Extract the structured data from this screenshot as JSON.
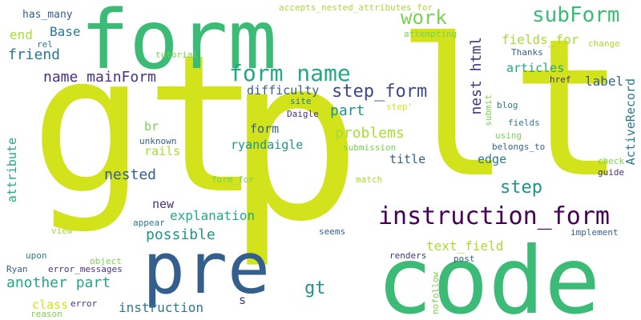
{
  "colors": {
    "background": "#ffffff",
    "yellow": "#d2e21b",
    "lime": "#a8db34",
    "light_green": "#7ad151",
    "green": "#3bbb75",
    "emerald": "#22a884",
    "teal": "#1f948c",
    "cyan_blue": "#2a788e",
    "slate_blue": "#345f8d",
    "indigo": "#3e4989",
    "purple": "#46327e",
    "dark_purple": "#440154"
  },
  "words": [
    {
      "text": "gt"
    },
    {
      "text": "p"
    },
    {
      "text": "lt"
    },
    {
      "text": "form"
    },
    {
      "text": "code"
    },
    {
      "text": "pre"
    },
    {
      "text": "instruction_form"
    },
    {
      "text": "form name"
    },
    {
      "text": "subForm"
    },
    {
      "text": "work"
    },
    {
      "text": "step_form"
    },
    {
      "text": "name mainForm"
    },
    {
      "text": "friend"
    },
    {
      "text": "end"
    },
    {
      "text": "Base"
    },
    {
      "text": "has_many"
    },
    {
      "text": "accepts_nested_attributes_for"
    },
    {
      "text": "rel"
    },
    {
      "text": "tutorial"
    },
    {
      "text": "attempting"
    },
    {
      "text": "change"
    },
    {
      "text": "fields_for"
    },
    {
      "text": "articles"
    },
    {
      "text": "Thanks"
    },
    {
      "text": "nest html"
    },
    {
      "text": "label"
    },
    {
      "text": "href"
    },
    {
      "text": "ActiveRecord"
    },
    {
      "text": "difficulty"
    },
    {
      "text": "site"
    },
    {
      "text": "part"
    },
    {
      "text": "step'"
    },
    {
      "text": "blog"
    },
    {
      "text": "Daigle"
    },
    {
      "text": "submit"
    },
    {
      "text": "fields"
    },
    {
      "text": "form"
    },
    {
      "text": "problems"
    },
    {
      "text": "br"
    },
    {
      "text": "ryandaigle"
    },
    {
      "text": "unknown"
    },
    {
      "text": "submission"
    },
    {
      "text": "using"
    },
    {
      "text": "belongs_to"
    },
    {
      "text": "rails"
    },
    {
      "text": "title"
    },
    {
      "text": "nested"
    },
    {
      "text": "edge"
    },
    {
      "text": "check"
    },
    {
      "text": "guide"
    },
    {
      "text": "step"
    },
    {
      "text": "attribute"
    },
    {
      "text": "form_for"
    },
    {
      "text": "match"
    },
    {
      "text": "new"
    },
    {
      "text": "explanation"
    },
    {
      "text": "view"
    },
    {
      "text": "possible"
    },
    {
      "text": "appear"
    },
    {
      "text": "implement"
    },
    {
      "text": "seems"
    },
    {
      "text": "text_field"
    },
    {
      "text": "post"
    },
    {
      "text": "upon"
    },
    {
      "text": "object"
    },
    {
      "text": "Ryan"
    },
    {
      "text": "error_messages"
    },
    {
      "text": "another part"
    },
    {
      "text": "gt"
    },
    {
      "text": "renders"
    },
    {
      "text": "nofollow"
    },
    {
      "text": "class"
    },
    {
      "text": "error"
    },
    {
      "text": "instruction"
    },
    {
      "text": "s"
    },
    {
      "text": "reason"
    }
  ]
}
